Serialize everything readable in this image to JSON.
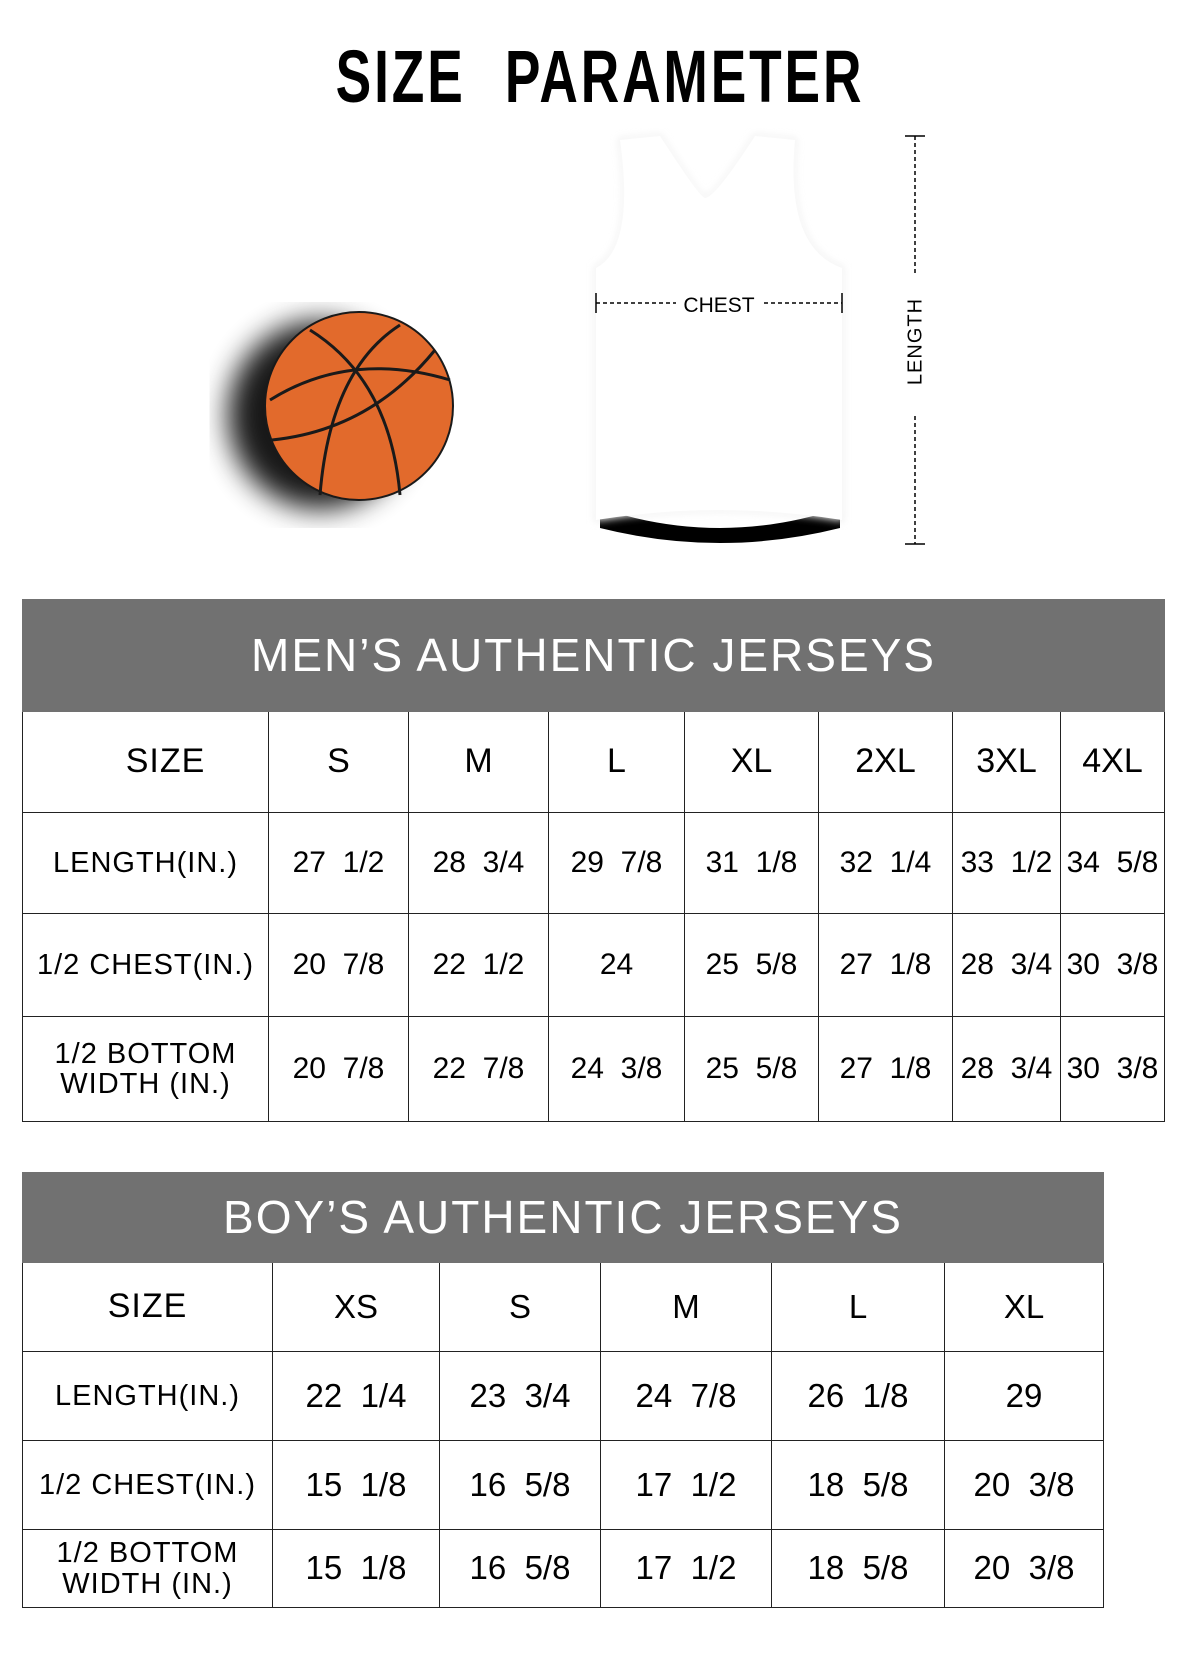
{
  "title": "SIZE PARAMETER",
  "diagram": {
    "chest_label": "CHEST",
    "length_label": "LENGTH",
    "ball_color": "#e26a2c",
    "header_color": "#717171"
  },
  "mens": {
    "title": "MEN’S AUTHENTIC JERSEYS",
    "size_label": "SIZE",
    "sizes": [
      "S",
      "M",
      "L",
      "XL",
      "2XL",
      "3XL",
      "4XL"
    ],
    "rows": [
      {
        "label": "LENGTH(IN.)",
        "values": [
          "27  1/2",
          "28  3/4",
          "29  7/8",
          "31  1/8",
          "32  1/4",
          "33  1/2",
          "34  5/8"
        ]
      },
      {
        "label": "1/2 CHEST(IN.)",
        "values": [
          "20  7/8",
          "22  1/2",
          "24",
          "25  5/8",
          "27  1/8",
          "28  3/4",
          "30  3/8"
        ]
      },
      {
        "label": "1/2 BOTTOM WIDTH  (IN.)",
        "values": [
          "20  7/8",
          "22  7/8",
          "24  3/8",
          "25  5/8",
          "27  1/8",
          "28  3/4",
          "30  3/8"
        ]
      }
    ]
  },
  "boys": {
    "title": "BOY’S AUTHENTIC JERSEYS",
    "size_label": "SIZE",
    "sizes": [
      "XS",
      "S",
      "M",
      "L",
      "XL"
    ],
    "rows": [
      {
        "label": "LENGTH(IN.)",
        "values": [
          "22  1/4",
          "23  3/4",
          "24  7/8",
          "26  1/8",
          "29"
        ]
      },
      {
        "label": "1/2 CHEST(IN.)",
        "values": [
          "15  1/8",
          "16  5/8",
          "17  1/2",
          "18  5/8",
          "20  3/8"
        ]
      },
      {
        "label": "1/2 BOTTOM WIDTH  (IN.)",
        "values": [
          "15  1/8",
          "16  5/8",
          "17  1/2",
          "18  5/8",
          "20  3/8"
        ]
      }
    ]
  }
}
